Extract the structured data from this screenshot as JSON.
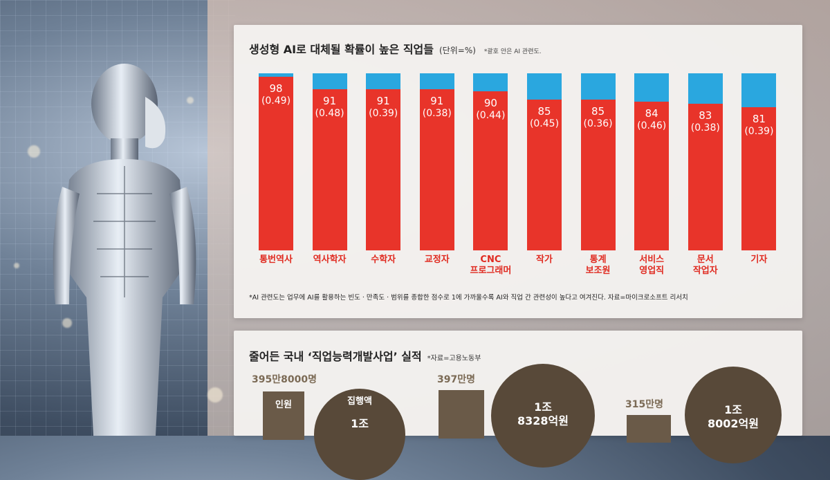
{
  "top_chart": {
    "title": "생성형 AI로 대체될 확률이 높은 직업들",
    "unit": "(단위=%)",
    "note": "*괄호 안은 AI 관련도.",
    "footnote": "*AI 관련도는 업무에 AI를 활용하는 빈도 · 만족도 · 범위를 종합한 점수로 1에 가까울수록 AI와 직업 간 관련성이 높다고 여겨진다. 자료=마이크로소프트 리서치"
  },
  "chart_data": [
    {
      "type": "bar",
      "title": "생성형 AI로 대체될 확률이 높은 직업들",
      "categories": [
        "통번역사",
        "역사학자",
        "수학자",
        "교정자",
        "CNC 프로그래머",
        "작가",
        "통계 보조원",
        "서비스 영업직",
        "문서 작업자",
        "기자"
      ],
      "category_lines": [
        [
          "통번역사"
        ],
        [
          "역사학자"
        ],
        [
          "수학자"
        ],
        [
          "교정자"
        ],
        [
          "CNC",
          "프로그래머"
        ],
        [
          "작가"
        ],
        [
          "통계",
          "보조원"
        ],
        [
          "서비스",
          "영업직"
        ],
        [
          "문서",
          "작업자"
        ],
        [
          "기자"
        ]
      ],
      "values": [
        98,
        91,
        91,
        91,
        90,
        85,
        85,
        84,
        83,
        81
      ],
      "ai_relevance": [
        "(0.49)",
        "(0.48)",
        "(0.39)",
        "(0.38)",
        "(0.44)",
        "(0.45)",
        "(0.36)",
        "(0.46)",
        "(0.38)",
        "(0.39)"
      ],
      "ylim": [
        0,
        100
      ],
      "colors": {
        "fill": "#e8342a",
        "remainder": "#2aa7df"
      }
    },
    {
      "type": "bar",
      "title": "줄어든 국내 '직업능력개발사업' 실적",
      "source": "*자료=고용노동부",
      "groups": [
        {
          "people": "395만8000명",
          "people_label": "인원",
          "budget_label": "집행액",
          "budget": "1조"
        },
        {
          "people": "397만명",
          "budget": "1조 8328억원"
        },
        {
          "people": "315만명",
          "budget": "1조 8002억원"
        }
      ]
    }
  ],
  "bottom_chart": {
    "title": "줄어든 국내 ‘직업능력개발사업’ 실적",
    "source": "*자료=고용노동부",
    "g1_people": "395만8000명",
    "g1_people_label": "인원",
    "g1_budget_label": "집행액",
    "g1_budget_line1": "1조",
    "g2_people": "397만명",
    "g2_budget_line1": "1조",
    "g2_budget_line2": "8328억원",
    "g3_people": "315만명",
    "g3_budget_line1": "1조",
    "g3_budget_line2": "8002억원"
  }
}
